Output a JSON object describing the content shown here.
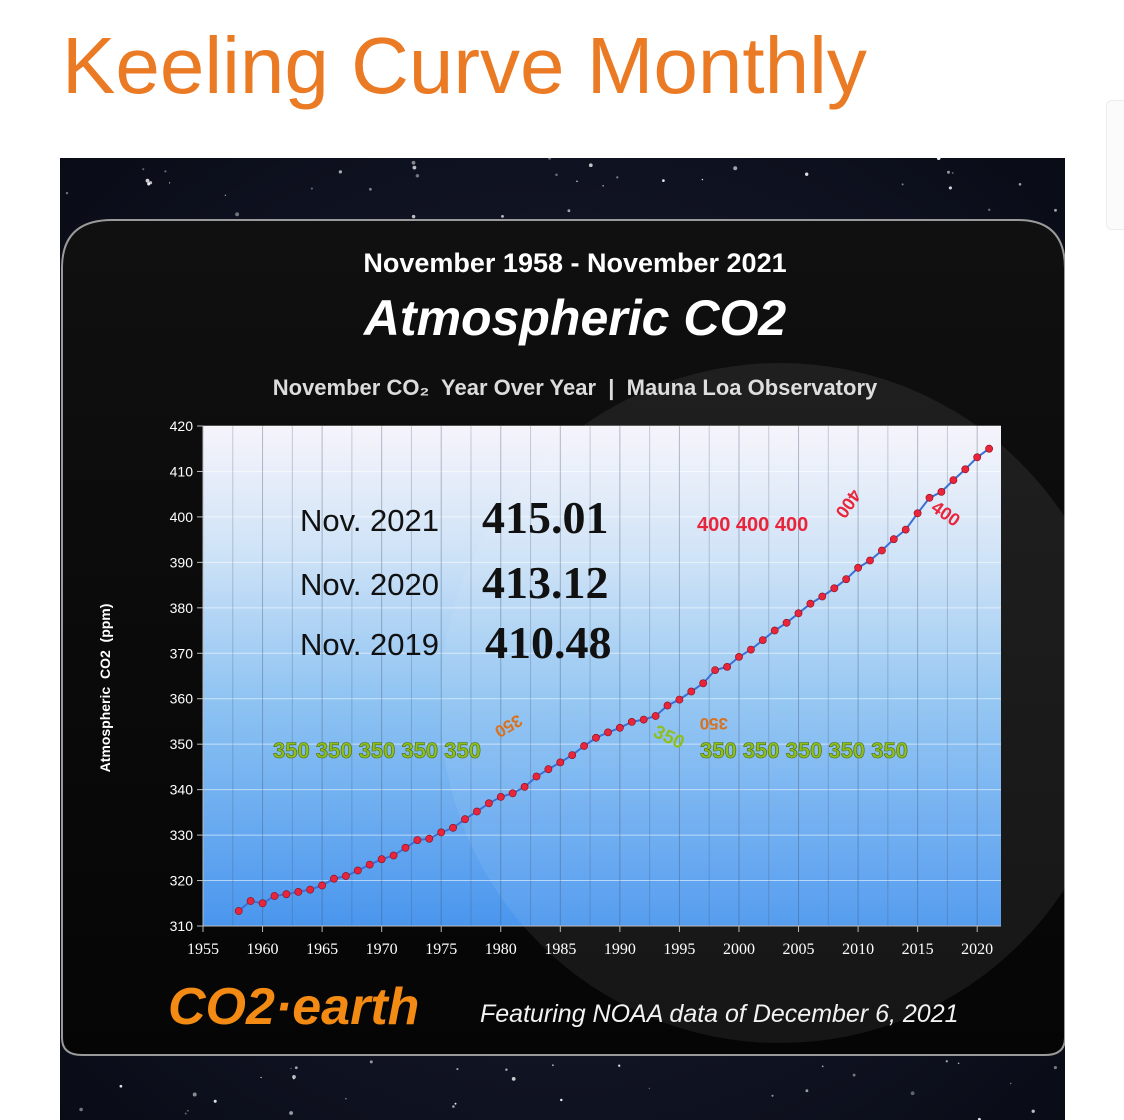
{
  "page": {
    "title": "Keeling Curve Monthly"
  },
  "figure": {
    "date_range": "November 1958 - November 2021",
    "headline": "Atmospheric CO2",
    "subtitle": "November CO₂  Year Over Year  |  Mauna Loa Observatory",
    "brand_logo": "CO2·earth",
    "credit": "Featuring NOAA data of December 6, 2021",
    "readings": [
      {
        "label": "Nov. 2021",
        "value": "415.01"
      },
      {
        "label": "Nov. 2020",
        "value": "413.12"
      },
      {
        "label": "Nov. 2019",
        "value": "410.48"
      }
    ],
    "marker_350_text": "350 350 350 350 350",
    "marker_350_right_text": "350 350 350 350 350",
    "marker_350_small": "350",
    "marker_400_text": "400 400 400",
    "marker_400_small": "400",
    "colors": {
      "title": "#ea7a24",
      "line": "#3b6fd6",
      "points": "#e8253a",
      "marker_350": "#8fbf1f",
      "marker_400": "#e8253a",
      "logo": "#f28a14"
    }
  },
  "chart_data": {
    "type": "line",
    "title": "Atmospheric CO2",
    "ylabel": "Atmospheric  CO2  (ppm)",
    "xlabel": "",
    "xlim": [
      1955,
      2022
    ],
    "ylim": [
      310,
      420
    ],
    "x_ticks": [
      1955,
      1960,
      1965,
      1970,
      1975,
      1980,
      1985,
      1990,
      1995,
      2000,
      2005,
      2010,
      2015,
      2020
    ],
    "y_ticks": [
      310,
      320,
      330,
      340,
      350,
      360,
      370,
      380,
      390,
      400,
      410,
      420
    ],
    "grid": true,
    "x": [
      1958,
      1959,
      1960,
      1961,
      1962,
      1963,
      1964,
      1965,
      1966,
      1967,
      1968,
      1969,
      1970,
      1971,
      1972,
      1973,
      1974,
      1975,
      1976,
      1977,
      1978,
      1979,
      1980,
      1981,
      1982,
      1983,
      1984,
      1985,
      1986,
      1987,
      1988,
      1989,
      1990,
      1991,
      1992,
      1993,
      1994,
      1995,
      1996,
      1997,
      1998,
      1999,
      2000,
      2001,
      2002,
      2003,
      2004,
      2005,
      2006,
      2007,
      2008,
      2009,
      2010,
      2011,
      2012,
      2013,
      2014,
      2015,
      2016,
      2017,
      2018,
      2019,
      2020,
      2021
    ],
    "series": [
      {
        "values": [
          313.3,
          315.5,
          315.0,
          316.6,
          317.0,
          317.5,
          318.0,
          318.9,
          320.4,
          321.0,
          322.2,
          323.5,
          324.7,
          325.5,
          327.2,
          328.9,
          329.2,
          330.6,
          331.6,
          333.5,
          335.2,
          337.0,
          338.4,
          339.2,
          340.6,
          342.9,
          344.5,
          346.0,
          347.6,
          349.6,
          351.4,
          352.6,
          353.6,
          354.9,
          355.4,
          356.2,
          358.5,
          359.8,
          361.6,
          363.4,
          366.3,
          367.0,
          369.2,
          370.8,
          372.9,
          375.0,
          376.7,
          378.8,
          380.9,
          382.5,
          384.3,
          386.3,
          388.8,
          390.4,
          392.6,
          395.1,
          397.2,
          400.8,
          404.2,
          405.5,
          408.1,
          410.48,
          413.12,
          415.01
        ]
      }
    ]
  }
}
